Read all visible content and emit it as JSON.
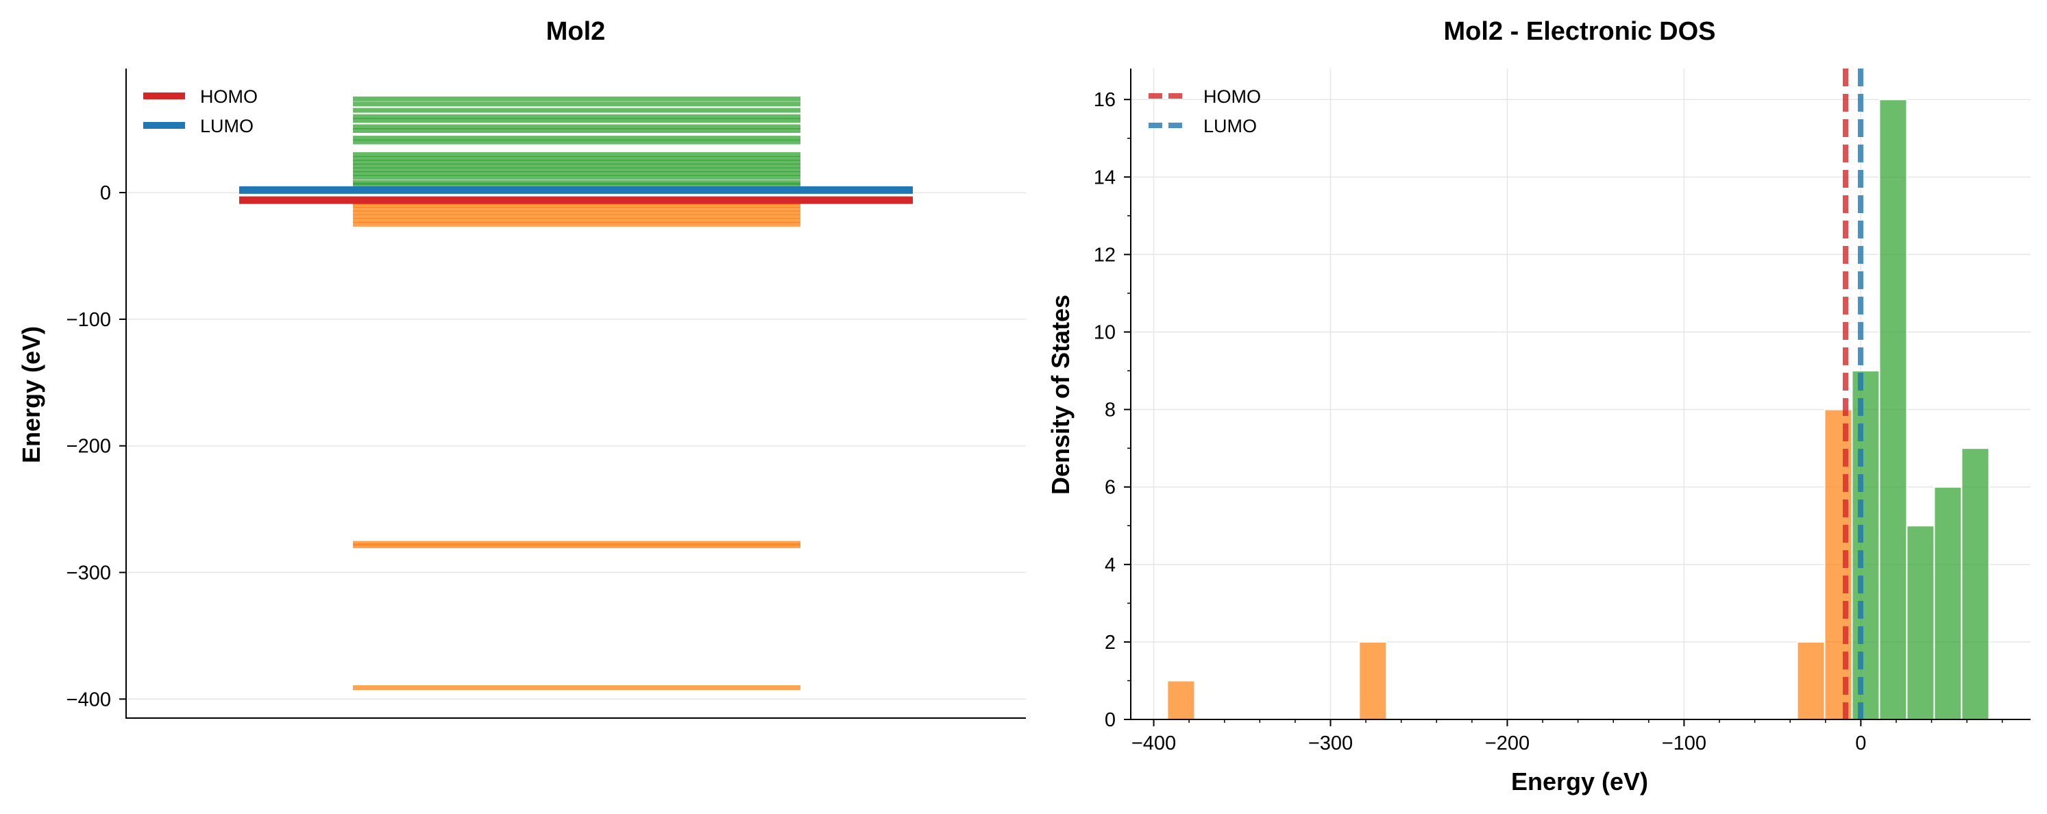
{
  "chart_data": [
    {
      "type": "energy-level-diagram",
      "title": "Mol2",
      "xlabel": "",
      "ylabel": "Energy (eV)",
      "ylim": [
        -415,
        98
      ],
      "y_ticks": [
        0,
        -100,
        -200,
        -300,
        -400
      ],
      "grid": true,
      "legend": {
        "position": "top-left",
        "entries": [
          {
            "label": "HOMO",
            "color": "#d62728"
          },
          {
            "label": "LUMO",
            "color": "#1f77b4"
          }
        ]
      },
      "occupied_levels": [
        -391,
        -279,
        -277,
        -25,
        -22,
        -19,
        -16,
        -13,
        -10,
        -8
      ],
      "virtual_levels": [
        3,
        6,
        8,
        12,
        15,
        18,
        21,
        24,
        27,
        30,
        40,
        43,
        49,
        52,
        57,
        60,
        65,
        70,
        74
      ],
      "homo": -6,
      "lumo": 2,
      "colors": {
        "occupied": "#ff7f0e",
        "virtual": "#2ca02c",
        "homo": "#d62728",
        "lumo": "#1f77b4"
      }
    },
    {
      "type": "bar",
      "title": "Mol2 - Electronic DOS",
      "xlabel": "Energy (eV)",
      "ylabel": "Density of States",
      "xlim": [
        -413,
        96
      ],
      "ylim": [
        0,
        16.8
      ],
      "x_ticks": [
        -400,
        -300,
        -200,
        -100,
        0
      ],
      "y_ticks": [
        0,
        2,
        4,
        6,
        8,
        10,
        12,
        14,
        16
      ],
      "grid": true,
      "legend": {
        "position": "top-left",
        "entries": [
          {
            "label": "HOMO",
            "color": "#d62728"
          },
          {
            "label": "LUMO",
            "color": "#1f77b4"
          }
        ]
      },
      "homo": -6,
      "lumo": 2,
      "bin_width": 15.5,
      "series": [
        {
          "bins": [
            {
              "start": -392.3,
              "end": -376.8,
              "count": 1
            },
            {
              "start": -283.8,
              "end": -268.3,
              "count": 2
            },
            {
              "start": -36.0,
              "end": -20.5,
              "count": 2
            },
            {
              "start": -20.5,
              "end": -5.0,
              "count": 8
            }
          ],
          "color": "#ff7f0e"
        },
        {
          "bins": [
            {
              "start": -5.0,
              "end": 10.5,
              "count": 9
            },
            {
              "start": 10.5,
              "end": 26.0,
              "count": 16
            },
            {
              "start": 26.0,
              "end": 41.5,
              "count": 5
            },
            {
              "start": 41.5,
              "end": 57.0,
              "count": 6
            },
            {
              "start": 57.0,
              "end": 72.5,
              "count": 7
            }
          ],
          "color": "#2ca02c"
        }
      ]
    }
  ]
}
